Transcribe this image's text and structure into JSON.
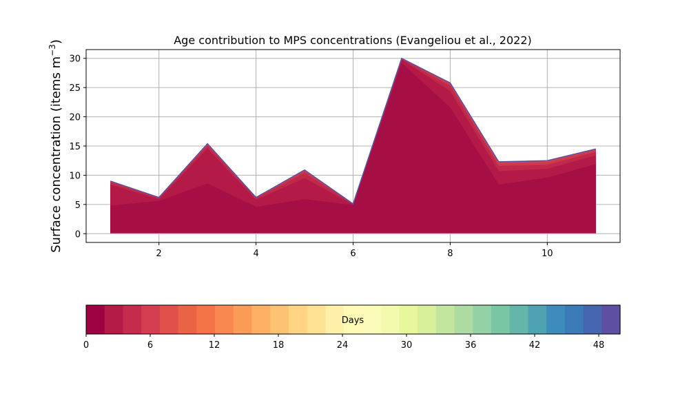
{
  "chart_data": [
    {
      "type": "area",
      "title": "Age contribution to MPS concentrations (Evangeliou et al., 2022)",
      "xlabel": "",
      "ylabel_main": "Surface concentration (items m",
      "ylabel_sup": "−3",
      "ylabel_close": ")",
      "xlim": [
        0.5,
        11.5
      ],
      "ylim": [
        -1.5,
        31.5
      ],
      "xticks": [
        2,
        4,
        6,
        8,
        10
      ],
      "yticks": [
        0,
        5,
        10,
        15,
        20,
        25,
        30
      ],
      "grid": true,
      "x": [
        1,
        2,
        3,
        4,
        5,
        6,
        7,
        8,
        9,
        10,
        11
      ],
      "bands": [
        {
          "color": "#a60f45",
          "values": [
            4.8,
            5.6,
            8.6,
            4.6,
            5.9,
            4.9,
            29.2,
            21.6,
            8.4,
            9.6,
            11.9
          ]
        },
        {
          "color": "#b41a47",
          "values": [
            8.4,
            5.9,
            14.6,
            5.8,
            9.5,
            5.0,
            29.8,
            24.4,
            10.7,
            11.1,
            13.4
          ]
        },
        {
          "color": "#c02949",
          "values": [
            8.8,
            6.1,
            15.1,
            6.1,
            10.4,
            5.1,
            29.9,
            25.3,
            11.6,
            11.8,
            14.0
          ]
        },
        {
          "color": "#cc3a4b",
          "values": [
            8.9,
            6.2,
            15.2,
            6.2,
            10.7,
            5.1,
            30.0,
            25.6,
            12.0,
            12.2,
            14.3
          ]
        },
        {
          "color": "#d5434e",
          "values": [
            9.0,
            6.2,
            15.3,
            6.2,
            10.8,
            5.1,
            30.0,
            25.7,
            12.2,
            12.4,
            14.4
          ]
        },
        {
          "color": "#5e4fa2",
          "values": [
            9.0,
            6.2,
            15.4,
            6.2,
            10.9,
            5.1,
            30.0,
            25.8,
            12.3,
            12.5,
            14.5
          ]
        }
      ]
    },
    {
      "type": "heatmap",
      "label": "Days",
      "range": [
        0,
        50
      ],
      "ticks": [
        "0",
        "6",
        "12",
        "18",
        "24",
        "30",
        "36",
        "42",
        "48"
      ],
      "tick_values": [
        0,
        6,
        12,
        18,
        24,
        30,
        36,
        42,
        48
      ],
      "colors": [
        "#9e0142",
        "#b41c47",
        "#c52b4a",
        "#d53e4f",
        "#e1514a",
        "#ea6345",
        "#f47447",
        "#f88850",
        "#fa9c58",
        "#fdb063",
        "#fdc372",
        "#fed382",
        "#fee293",
        "#fef0a6",
        "#fffbb7",
        "#fbfcb9",
        "#f4faad",
        "#e8f69c",
        "#d8ef9b",
        "#c3e69f",
        "#acdca2",
        "#92d1a4",
        "#79c6a5",
        "#64b5aa",
        "#4ea2b1",
        "#3d8cbb",
        "#3b7bb7",
        "#4566ae",
        "#5e4fa2"
      ]
    }
  ]
}
